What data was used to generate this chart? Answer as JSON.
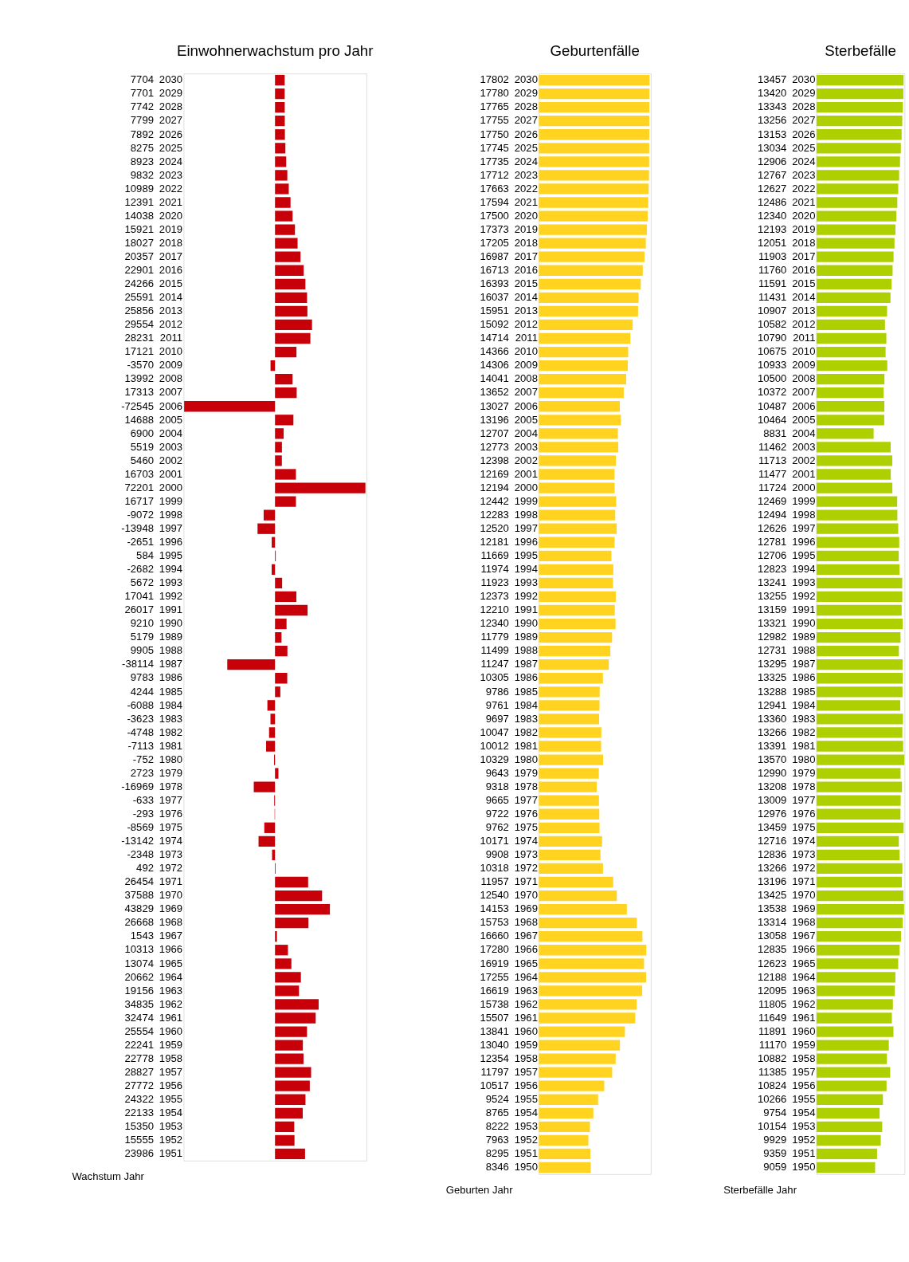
{
  "chart_data": [
    {
      "type": "bar",
      "orientation": "horizontal",
      "title": "Einwohnerwachstum pro Jahr",
      "xlabel": "Wachstum Jahr",
      "data_labels": true,
      "tick_labels": "y",
      "xlim": [
        -73000,
        73000
      ],
      "categories": [
        "2030",
        "2029",
        "2028",
        "2027",
        "2026",
        "2025",
        "2024",
        "2023",
        "2022",
        "2021",
        "2020",
        "2019",
        "2018",
        "2017",
        "2016",
        "2015",
        "2014",
        "2013",
        "2012",
        "2011",
        "2010",
        "2009",
        "2008",
        "2007",
        "2006",
        "2005",
        "2004",
        "2003",
        "2002",
        "2001",
        "2000",
        "1999",
        "1998",
        "1997",
        "1996",
        "1995",
        "1994",
        "1993",
        "1992",
        "1991",
        "1990",
        "1989",
        "1988",
        "1987",
        "1986",
        "1985",
        "1984",
        "1983",
        "1982",
        "1981",
        "1980",
        "1979",
        "1978",
        "1977",
        "1976",
        "1975",
        "1974",
        "1973",
        "1972",
        "1971",
        "1970",
        "1969",
        "1968",
        "1967",
        "1966",
        "1965",
        "1964",
        "1963",
        "1962",
        "1961",
        "1960",
        "1959",
        "1958",
        "1957",
        "1956",
        "1955",
        "1954",
        "1953",
        "1952",
        "1951"
      ],
      "series": [
        {
          "color": "#c8000a",
          "values": [
            7704,
            7701,
            7742,
            7799,
            7892,
            8275,
            8923,
            9832,
            10989,
            12391,
            14038,
            15921,
            18027,
            20357,
            22901,
            24266,
            25591,
            25856,
            29554,
            28231,
            17121,
            -3570,
            13992,
            17313,
            -72545,
            14688,
            6900,
            5519,
            5460,
            16703,
            72201,
            16717,
            -9072,
            -13948,
            -2651,
            584,
            -2682,
            5672,
            17041,
            26017,
            9210,
            5179,
            9905,
            -38114,
            9783,
            4244,
            -6088,
            -3623,
            -4748,
            -7113,
            -752,
            2723,
            -16969,
            -633,
            -293,
            -8569,
            -13142,
            -2348,
            492,
            26454,
            37588,
            43829,
            26668,
            1543,
            10313,
            13074,
            20662,
            19156,
            34835,
            32474,
            25554,
            22241,
            22778,
            28827,
            27772,
            24322,
            22133,
            15350,
            15555,
            23986
          ]
        }
      ]
    },
    {
      "type": "bar",
      "orientation": "horizontal",
      "title": "Geburtenfälle",
      "xlabel": "Geburten Jahr",
      "data_labels": true,
      "tick_labels": "y",
      "xlim": [
        0,
        18000
      ],
      "categories": [
        "2030",
        "2029",
        "2028",
        "2027",
        "2026",
        "2025",
        "2024",
        "2023",
        "2022",
        "2021",
        "2020",
        "2019",
        "2018",
        "2017",
        "2016",
        "2015",
        "2014",
        "2013",
        "2012",
        "2011",
        "2010",
        "2009",
        "2008",
        "2007",
        "2006",
        "2005",
        "2004",
        "2003",
        "2002",
        "2001",
        "2000",
        "1999",
        "1998",
        "1997",
        "1996",
        "1995",
        "1994",
        "1993",
        "1992",
        "1991",
        "1990",
        "1989",
        "1988",
        "1987",
        "1986",
        "1985",
        "1984",
        "1983",
        "1982",
        "1981",
        "1980",
        "1979",
        "1978",
        "1977",
        "1976",
        "1975",
        "1974",
        "1973",
        "1972",
        "1971",
        "1970",
        "1969",
        "1968",
        "1967",
        "1966",
        "1965",
        "1964",
        "1963",
        "1962",
        "1961",
        "1960",
        "1959",
        "1958",
        "1957",
        "1956",
        "1955",
        "1954",
        "1953",
        "1952",
        "1951",
        "1950"
      ],
      "series": [
        {
          "color": "#ffd320",
          "values": [
            17802,
            17780,
            17765,
            17755,
            17750,
            17745,
            17735,
            17712,
            17663,
            17594,
            17500,
            17373,
            17205,
            16987,
            16713,
            16393,
            16037,
            15951,
            15092,
            14714,
            14366,
            14306,
            14041,
            13652,
            13027,
            13196,
            12707,
            12773,
            12398,
            12169,
            12194,
            12442,
            12283,
            12520,
            12181,
            11669,
            11974,
            11923,
            12373,
            12210,
            12340,
            11779,
            11499,
            11247,
            10305,
            9786,
            9761,
            9697,
            10047,
            10012,
            10329,
            9643,
            9318,
            9665,
            9722,
            9762,
            10171,
            9908,
            10318,
            11957,
            12540,
            14153,
            15753,
            16660,
            17280,
            16919,
            17255,
            16619,
            15738,
            15507,
            13841,
            13040,
            12354,
            11797,
            10517,
            9524,
            8765,
            8222,
            7963,
            8295,
            8346
          ]
        }
      ]
    },
    {
      "type": "bar",
      "orientation": "horizontal",
      "title": "Sterbefälle",
      "xlabel": "Sterbefälle Jahr",
      "data_labels": true,
      "tick_labels": "y",
      "xlim": [
        0,
        13600
      ],
      "categories": [
        "2030",
        "2029",
        "2028",
        "2027",
        "2026",
        "2025",
        "2024",
        "2023",
        "2022",
        "2021",
        "2020",
        "2019",
        "2018",
        "2017",
        "2016",
        "2015",
        "2014",
        "2013",
        "2012",
        "2011",
        "2010",
        "2009",
        "2008",
        "2007",
        "2006",
        "2005",
        "2004",
        "2003",
        "2002",
        "2001",
        "2000",
        "1999",
        "1998",
        "1997",
        "1996",
        "1995",
        "1994",
        "1993",
        "1992",
        "1991",
        "1990",
        "1989",
        "1988",
        "1987",
        "1986",
        "1985",
        "1984",
        "1983",
        "1982",
        "1981",
        "1980",
        "1979",
        "1978",
        "1977",
        "1976",
        "1975",
        "1974",
        "1973",
        "1972",
        "1971",
        "1970",
        "1969",
        "1968",
        "1967",
        "1966",
        "1965",
        "1964",
        "1963",
        "1962",
        "1961",
        "1960",
        "1959",
        "1958",
        "1957",
        "1956",
        "1955",
        "1954",
        "1953",
        "1952",
        "1951",
        "1950"
      ],
      "series": [
        {
          "color": "#aecf00",
          "values": [
            13457,
            13420,
            13343,
            13256,
            13153,
            13034,
            12906,
            12767,
            12627,
            12486,
            12340,
            12193,
            12051,
            11903,
            11760,
            11591,
            11431,
            10907,
            10582,
            10790,
            10675,
            10933,
            10500,
            10372,
            10487,
            10464,
            8831,
            11462,
            11713,
            11477,
            11724,
            12469,
            12494,
            12626,
            12781,
            12706,
            12823,
            13241,
            13255,
            13159,
            13321,
            12982,
            12731,
            13295,
            13325,
            13288,
            12941,
            13360,
            13266,
            13391,
            13570,
            12990,
            13208,
            13009,
            12976,
            13459,
            12716,
            12836,
            13266,
            13196,
            13425,
            13538,
            13314,
            13058,
            12835,
            12623,
            12188,
            12095,
            11805,
            11649,
            11891,
            11170,
            10882,
            11385,
            10824,
            10266,
            9754,
            10154,
            9929,
            9359,
            9059
          ]
        }
      ]
    }
  ]
}
